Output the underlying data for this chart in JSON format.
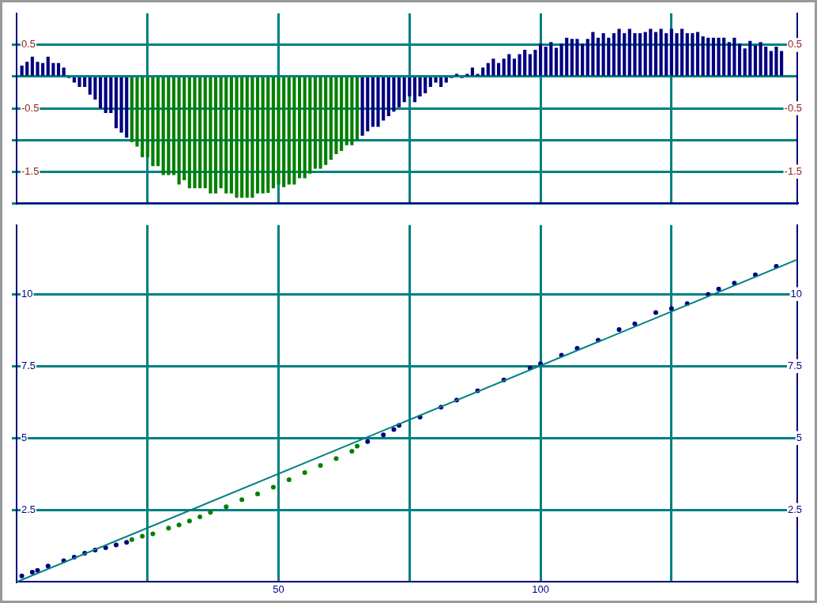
{
  "chart_data": [
    {
      "type": "bar",
      "x": [
        1,
        2,
        3,
        4,
        5,
        6,
        7,
        8,
        9,
        10,
        11,
        12,
        13,
        14,
        15,
        16,
        17,
        18,
        19,
        20,
        21,
        22,
        23,
        24,
        25,
        26,
        27,
        28,
        29,
        30,
        31,
        32,
        33,
        34,
        35,
        36,
        37,
        38,
        39,
        40,
        41,
        42,
        43,
        44,
        45,
        46,
        47,
        48,
        49,
        50,
        51,
        52,
        53,
        54,
        55,
        56,
        57,
        58,
        59,
        60,
        61,
        62,
        63,
        64,
        65,
        66,
        67,
        68,
        69,
        70,
        71,
        72,
        73,
        74,
        75,
        76,
        77,
        78,
        79,
        80,
        81,
        82,
        83,
        84,
        85,
        86,
        87,
        88,
        89,
        90,
        91,
        92,
        93,
        94,
        95,
        96,
        97,
        98,
        99,
        100,
        101,
        102,
        103,
        104,
        105,
        106,
        107,
        108,
        109,
        110,
        111,
        112,
        113,
        114,
        115,
        116,
        117,
        118,
        119,
        120,
        121,
        122,
        123,
        124,
        125,
        126,
        127,
        128,
        129,
        130,
        131,
        132,
        133,
        134,
        135,
        136,
        137,
        138,
        139,
        140,
        141,
        142,
        143,
        144,
        145,
        146
      ],
      "values": [
        0.17,
        0.23,
        0.31,
        0.23,
        0.21,
        0.31,
        0.21,
        0.21,
        0.14,
        -0.02,
        -0.09,
        -0.16,
        -0.16,
        -0.28,
        -0.36,
        -0.5,
        -0.57,
        -0.57,
        -0.81,
        -0.88,
        -0.96,
        -1.03,
        -1.1,
        -1.27,
        -1.27,
        -1.41,
        -1.41,
        -1.55,
        -1.55,
        -1.55,
        -1.7,
        -1.63,
        -1.76,
        -1.76,
        -1.76,
        -1.76,
        -1.84,
        -1.84,
        -1.76,
        -1.84,
        -1.84,
        -1.91,
        -1.91,
        -1.91,
        -1.91,
        -1.84,
        -1.84,
        -1.83,
        -1.76,
        -1.7,
        -1.74,
        -1.7,
        -1.7,
        -1.6,
        -1.6,
        -1.53,
        -1.45,
        -1.45,
        -1.39,
        -1.31,
        -1.22,
        -1.17,
        -1.08,
        -1.08,
        -1.0,
        -0.93,
        -0.86,
        -0.79,
        -0.79,
        -0.69,
        -0.62,
        -0.55,
        -0.48,
        -0.4,
        -0.31,
        -0.4,
        -0.31,
        -0.26,
        -0.16,
        -0.09,
        -0.16,
        -0.09,
        -0.02,
        0.04,
        -0.02,
        0.04,
        0.14,
        0.04,
        0.14,
        0.21,
        0.28,
        0.21,
        0.28,
        0.35,
        0.28,
        0.35,
        0.42,
        0.35,
        0.42,
        0.52,
        0.47,
        0.54,
        0.45,
        0.52,
        0.61,
        0.59,
        0.59,
        0.52,
        0.59,
        0.7,
        0.61,
        0.68,
        0.61,
        0.68,
        0.75,
        0.68,
        0.75,
        0.68,
        0.68,
        0.7,
        0.75,
        0.7,
        0.75,
        0.68,
        0.75,
        0.68,
        0.75,
        0.68,
        0.68,
        0.7,
        0.63,
        0.61,
        0.61,
        0.61,
        0.61,
        0.54,
        0.61,
        0.52,
        0.44,
        0.56,
        0.49,
        0.54,
        0.47,
        0.4,
        0.47,
        0.4
      ],
      "colors": [
        "#000080",
        "#000080",
        "#000080",
        "#000080",
        "#000080",
        "#000080",
        "#000080",
        "#000080",
        "#000080",
        "#000080",
        "#000080",
        "#000080",
        "#000080",
        "#000080",
        "#000080",
        "#000080",
        "#000080",
        "#000080",
        "#000080",
        "#000080",
        "#000080",
        "#008000",
        "#008000",
        "#008000",
        "#008000",
        "#008000",
        "#008000",
        "#008000",
        "#008000",
        "#008000",
        "#008000",
        "#008000",
        "#008000",
        "#008000",
        "#008000",
        "#008000",
        "#008000",
        "#008000",
        "#008000",
        "#008000",
        "#008000",
        "#008000",
        "#008000",
        "#008000",
        "#008000",
        "#008000",
        "#008000",
        "#008000",
        "#008000",
        "#008000",
        "#008000",
        "#008000",
        "#008000",
        "#008000",
        "#008000",
        "#008000",
        "#008000",
        "#008000",
        "#008000",
        "#008000",
        "#008000",
        "#008000",
        "#008000",
        "#008000",
        "#008000",
        "#000080",
        "#000080",
        "#000080",
        "#000080",
        "#000080",
        "#000080",
        "#000080",
        "#000080",
        "#000080",
        "#000080",
        "#000080",
        "#000080",
        "#000080",
        "#000080",
        "#000080",
        "#000080",
        "#000080",
        "#000080",
        "#000080",
        "#000080",
        "#000080",
        "#000080",
        "#000080",
        "#000080",
        "#000080",
        "#000080",
        "#000080",
        "#000080",
        "#000080",
        "#000080",
        "#000080",
        "#000080",
        "#000080",
        "#000080",
        "#000080",
        "#000080",
        "#000080",
        "#000080",
        "#000080",
        "#000080",
        "#000080",
        "#000080",
        "#000080",
        "#000080",
        "#000080",
        "#000080",
        "#000080",
        "#000080",
        "#000080",
        "#000080",
        "#000080",
        "#000080",
        "#000080",
        "#000080",
        "#000080",
        "#000080",
        "#000080",
        "#000080",
        "#000080",
        "#000080",
        "#000080",
        "#000080",
        "#000080",
        "#000080",
        "#000080",
        "#000080",
        "#000080",
        "#000080",
        "#000080",
        "#000080",
        "#000080",
        "#000080",
        "#000080",
        "#000080",
        "#000080",
        "#000080",
        "#000080",
        "#000080",
        "#000080",
        "#000080",
        "#000080"
      ],
      "xlim": [
        0,
        149
      ],
      "xticks": [
        {
          "value": 25,
          "label": null
        },
        {
          "value": 50,
          "label": null
        },
        {
          "value": 75,
          "label": null
        },
        {
          "value": 100,
          "label": null
        },
        {
          "value": 125,
          "label": null
        }
      ],
      "ylim": [
        -2,
        1
      ],
      "yticks": [
        0.5,
        {
          "value": 0,
          "label": null
        },
        -0.5,
        {
          "value": -1,
          "label": null
        },
        -1.5,
        {
          "value": -2,
          "label": null
        }
      ],
      "y2lim": [
        -2,
        1
      ],
      "y2ticks": [
        0.5,
        {
          "value": 0,
          "label": null
        },
        -0.5,
        {
          "value": -1,
          "label": null
        },
        -1.5,
        {
          "value": -2,
          "label": null
        }
      ],
      "tick_labels": "y",
      "grid": true,
      "legend": false
    },
    {
      "type": "line",
      "xlim": [
        0,
        149
      ],
      "xticks": [
        {
          "value": 25,
          "label": null
        },
        50,
        {
          "value": 75,
          "label": null
        },
        100,
        {
          "value": 125,
          "label": null
        }
      ],
      "ylim": [
        0,
        12.4
      ],
      "yticks": [
        2.5,
        5,
        7.5,
        10
      ],
      "y2lim": [
        0,
        12.4
      ],
      "y2ticks": [
        2.5,
        5,
        7.5,
        10
      ],
      "grid": true,
      "legend": false,
      "series": [
        {
          "type": "line",
          "color": "#008080",
          "marker": "none",
          "x": [
            0,
            149
          ],
          "values": [
            0,
            11.2
          ]
        },
        {
          "type": "scatter",
          "marker": "circle",
          "x": [
            1,
            3,
            4,
            6,
            9,
            11,
            13,
            15,
            17,
            19,
            21,
            22,
            24,
            26,
            29,
            31,
            33,
            35,
            37,
            40,
            43,
            46,
            49,
            52,
            55,
            58,
            61,
            64,
            65,
            67,
            70,
            72,
            73,
            77,
            81,
            84,
            88,
            93,
            98,
            100,
            104,
            107,
            111,
            115,
            118,
            122,
            125,
            128,
            132,
            134,
            137,
            141,
            145
          ],
          "values": [
            0.21,
            0.34,
            0.4,
            0.55,
            0.74,
            0.86,
            1.0,
            1.11,
            1.19,
            1.29,
            1.38,
            1.47,
            1.59,
            1.67,
            1.87,
            1.98,
            2.12,
            2.26,
            2.42,
            2.61,
            2.86,
            3.06,
            3.29,
            3.55,
            3.8,
            4.05,
            4.29,
            4.54,
            4.72,
            4.88,
            5.11,
            5.3,
            5.44,
            5.73,
            6.07,
            6.32,
            6.64,
            7.02,
            7.43,
            7.58,
            7.88,
            8.12,
            8.4,
            8.77,
            8.97,
            9.36,
            9.5,
            9.67,
            9.99,
            10.18,
            10.38,
            10.67,
            10.97
          ],
          "colors": [
            "#000080",
            "#000080",
            "#000080",
            "#000080",
            "#000080",
            "#000080",
            "#000080",
            "#000080",
            "#000080",
            "#000080",
            "#000080",
            "#008000",
            "#008000",
            "#008000",
            "#008000",
            "#008000",
            "#008000",
            "#008000",
            "#008000",
            "#008000",
            "#008000",
            "#008000",
            "#008000",
            "#008000",
            "#008000",
            "#008000",
            "#008000",
            "#008000",
            "#008000",
            "#000080",
            "#000080",
            "#000080",
            "#000080",
            "#000080",
            "#000080",
            "#000080",
            "#000080",
            "#000080",
            "#000080",
            "#000080",
            "#000080",
            "#000080",
            "#000080",
            "#000080",
            "#000080",
            "#000080",
            "#000080",
            "#000080",
            "#000080",
            "#000080",
            "#000080",
            "#000080",
            "#000080"
          ]
        }
      ]
    }
  ]
}
